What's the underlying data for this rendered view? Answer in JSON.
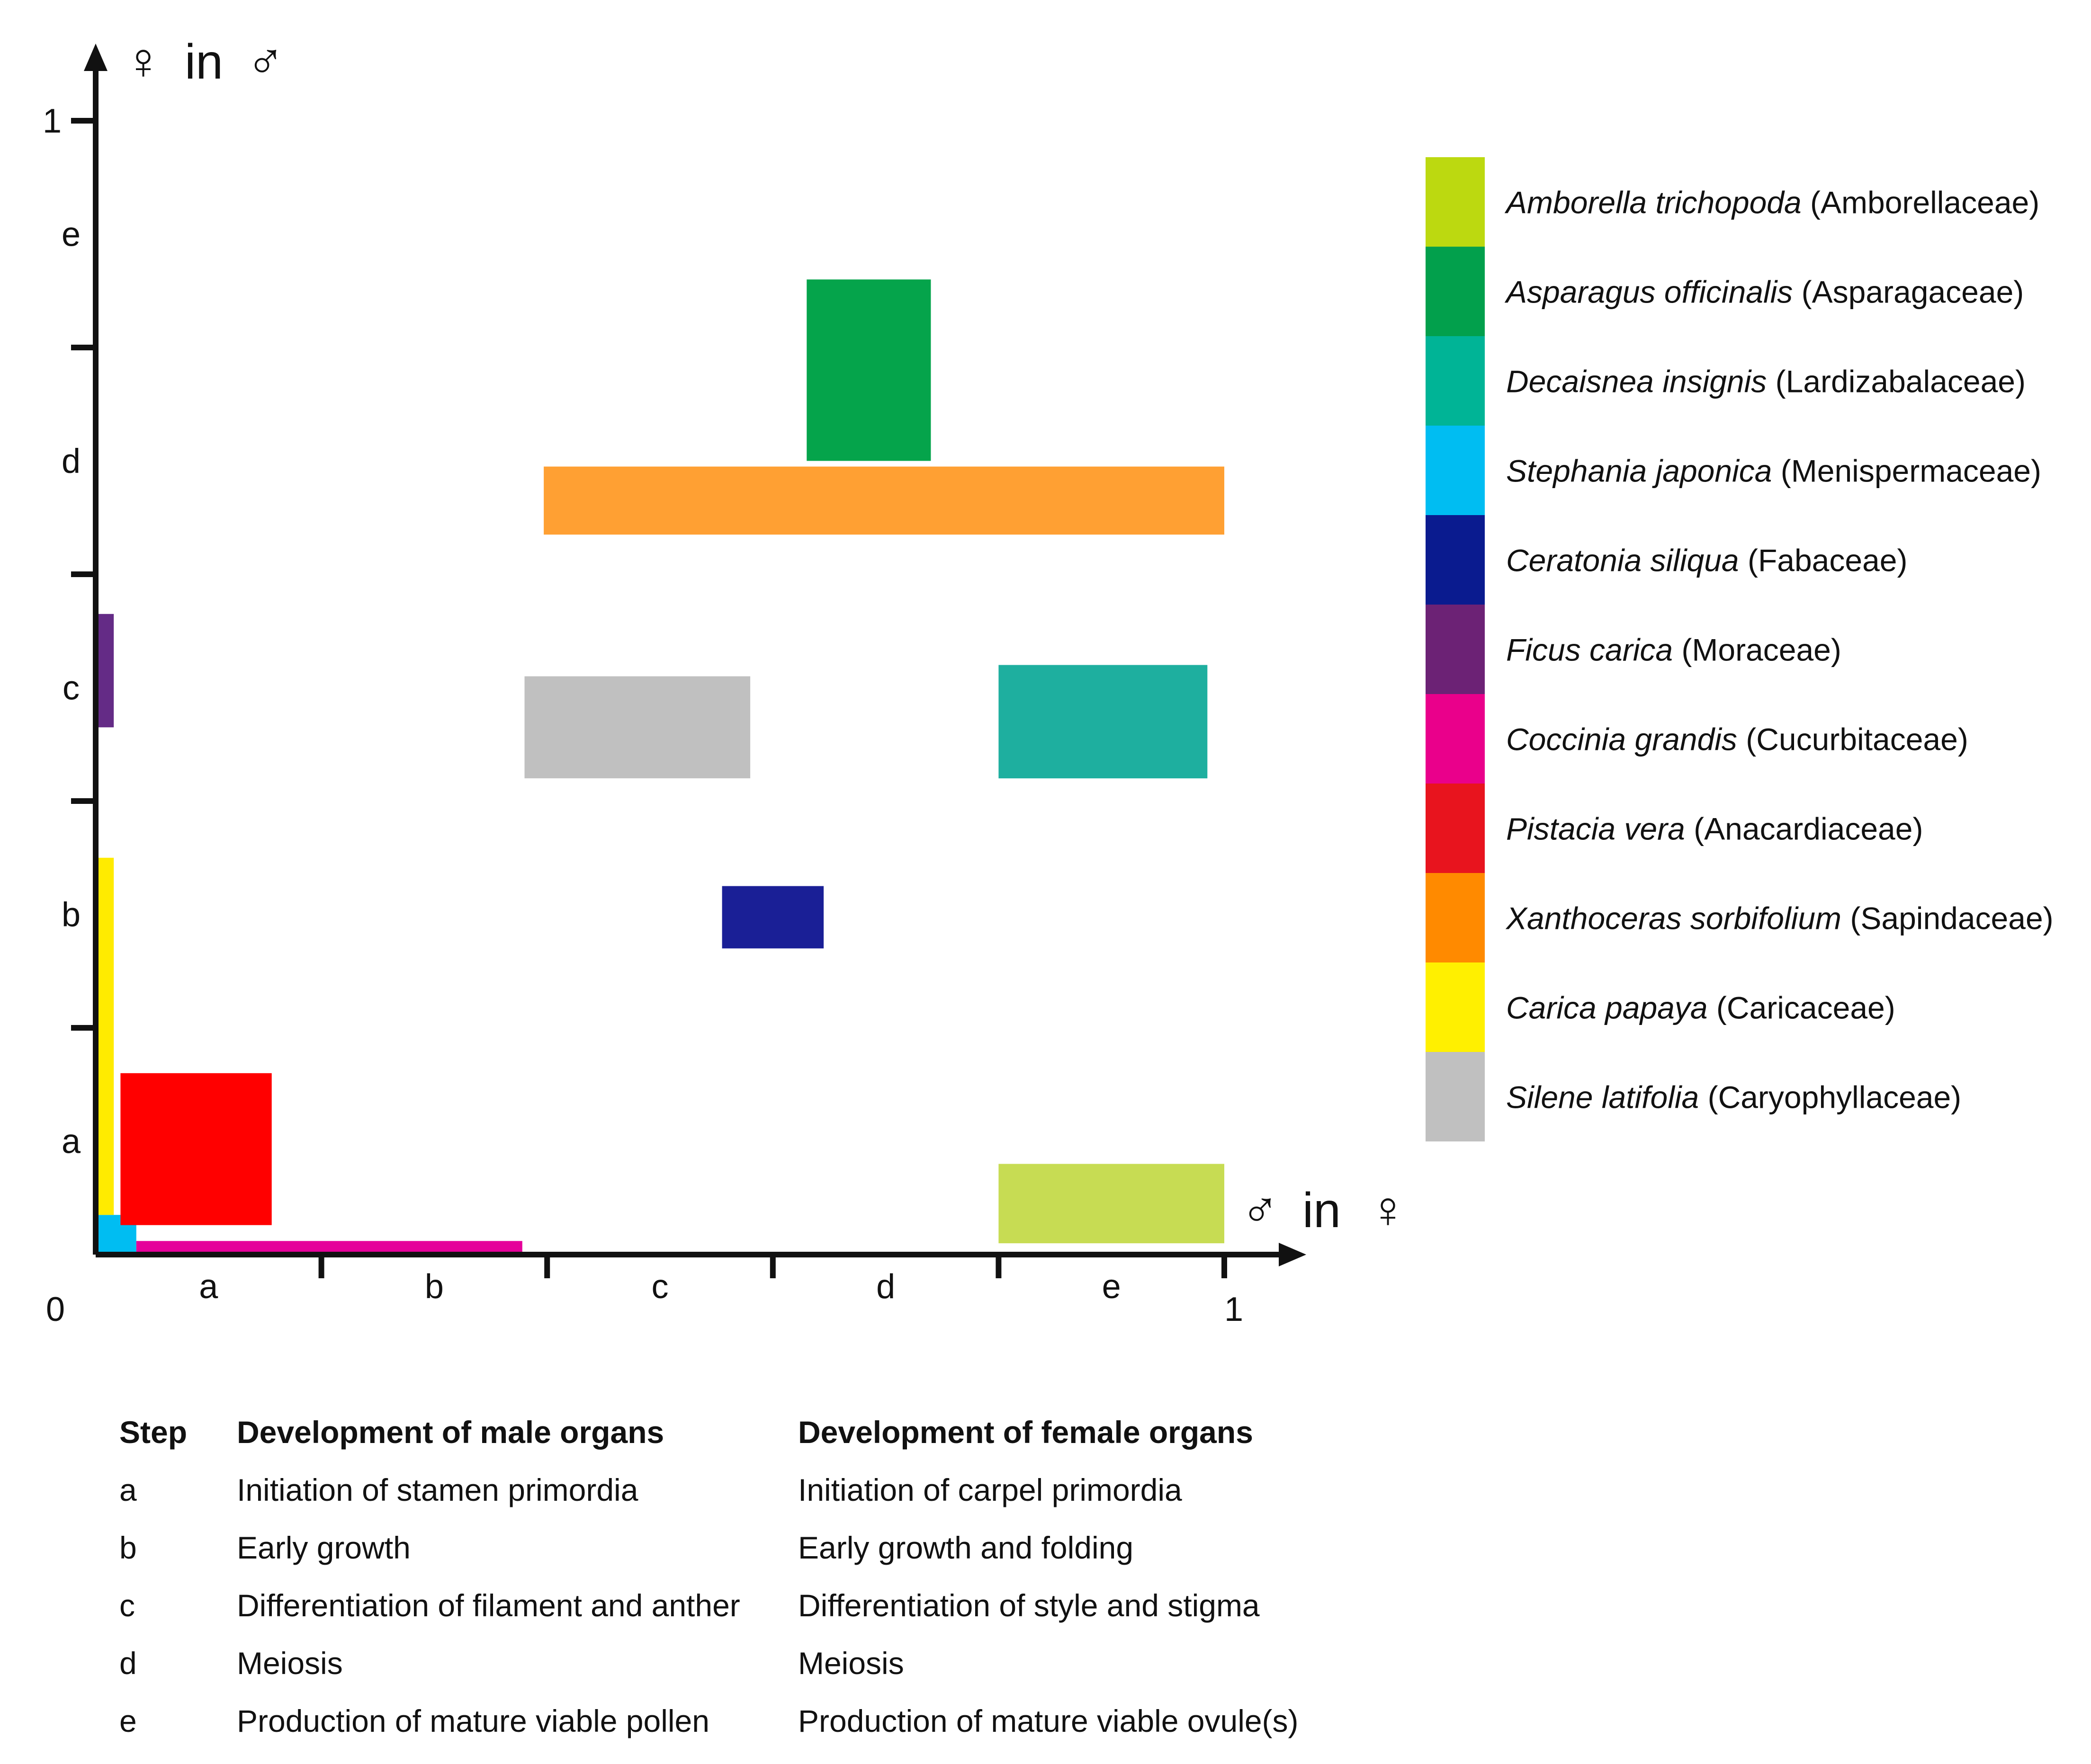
{
  "chart_data": {
    "type": "bar",
    "title": "",
    "xlabel": {
      "prefix_symbol": "♂",
      "middle": "in",
      "suffix_symbol": "♀"
    },
    "ylabel": {
      "prefix_symbol": "♀",
      "middle": "in",
      "suffix_symbol": "♂"
    },
    "xlim": [
      0,
      1
    ],
    "ylim": [
      0,
      1
    ],
    "x_origin_label": "0",
    "x_end_label": "1",
    "y_end_label": "1",
    "x_stage_labels": [
      "a",
      "b",
      "c",
      "d",
      "e"
    ],
    "y_stage_labels": [
      "a",
      "b",
      "c",
      "d",
      "e"
    ],
    "series": [
      {
        "name": "Amborella trichopoda",
        "family": "(Amborellaceae)",
        "color": "#C7DC53",
        "x_range": [
          0.8,
          1.0
        ],
        "y_range": [
          0.01,
          0.08
        ]
      },
      {
        "name": "Asparagus officinalis",
        "family": "(Asparagaceae)",
        "color": "#05A44B",
        "x_range": [
          0.63,
          0.74
        ],
        "y_range": [
          0.7,
          0.86
        ]
      },
      {
        "name": "Decaisnea insignis",
        "family": "(Lardizabalaceae)",
        "color": "#1EAF9F",
        "x_range": [
          0.8,
          0.985
        ],
        "y_range": [
          0.42,
          0.52
        ]
      },
      {
        "name": "Stephania japonica",
        "family": "(Menispermaceae)",
        "color": "#00BDF2",
        "x_range": [
          0.0,
          0.036
        ],
        "y_range": [
          0.0,
          0.035
        ]
      },
      {
        "name": "Ceratonia siliqua",
        "family": "(Fabaceae)",
        "color": "#1A1F96",
        "x_range": [
          0.555,
          0.645
        ],
        "y_range": [
          0.27,
          0.325
        ]
      },
      {
        "name": "Ficus carica",
        "family": "(Moraceae)",
        "color": "#642B86",
        "x_range": [
          0.002,
          0.016
        ],
        "y_range": [
          0.465,
          0.565
        ]
      },
      {
        "name": "Coccinia grandis",
        "family": "(Cucurbitaceae)",
        "color": "#E5009A",
        "x_range": [
          0.036,
          0.378
        ],
        "y_range": [
          0.0,
          0.012
        ]
      },
      {
        "name": "Pistacia vera",
        "family": "(Anacardiaceae)",
        "color": "#FF0000",
        "x_range": [
          0.022,
          0.156
        ],
        "y_range": [
          0.026,
          0.16
        ]
      },
      {
        "name": "Xanthoceras sorbifolium",
        "family": "(Sapindaceae)",
        "color": "#FFA033",
        "x_range": [
          0.397,
          1.0
        ],
        "y_range": [
          0.635,
          0.695
        ]
      },
      {
        "name": "Carica papaya",
        "family": "(Caricaceae)",
        "color": "#FFEB00",
        "x_range": [
          0.002,
          0.016
        ],
        "y_range": [
          0.035,
          0.35
        ]
      },
      {
        "name": "Silene latifolia",
        "family": "(Caryophyllaceae)",
        "color": "#C0C0C0",
        "x_range": [
          0.38,
          0.58
        ],
        "y_range": [
          0.42,
          0.51
        ]
      }
    ],
    "legend_order": [
      {
        "name": "Amborella trichopoda",
        "family": "(Amborellaceae)",
        "color": "#BCD910"
      },
      {
        "name": "Asparagus officinalis",
        "family": "(Asparagaceae)",
        "color": "#02A04C"
      },
      {
        "name": "Decaisnea insignis",
        "family": "(Lardizabalaceae)",
        "color": "#00B496"
      },
      {
        "name": "Stephania japonica",
        "family": "(Menispermaceae)",
        "color": "#00BDF2"
      },
      {
        "name": "Ceratonia siliqua",
        "family": "(Fabaceae)",
        "color": "#0A1B8F"
      },
      {
        "name": "Ficus carica",
        "family": "(Moraceae)",
        "color": "#6C2275"
      },
      {
        "name": "Coccinia grandis",
        "family": "(Cucurbitaceae)",
        "color": "#EA008B"
      },
      {
        "name": "Pistacia vera",
        "family": "(Anacardiaceae)",
        "color": "#E8141E"
      },
      {
        "name": "Xanthoceras sorbifolium",
        "family": "(Sapindaceae)",
        "color": "#FF8A00"
      },
      {
        "name": "Carica papaya",
        "family": "(Caricaceae)",
        "color": "#FFF000"
      },
      {
        "name": "Silene latifolia",
        "family": "(Caryophyllaceae)",
        "color": "#C0C0C0"
      }
    ]
  },
  "table": {
    "headers": [
      "Step",
      "Development of male organs",
      "Development of female organs"
    ],
    "rows": [
      [
        "a",
        "Initiation of stamen primordia",
        "Initiation of carpel primordia"
      ],
      [
        "b",
        "Early growth",
        "Early growth and folding"
      ],
      [
        "c",
        "Differentiation of filament and anther",
        "Differentiation of style and stigma"
      ],
      [
        "d",
        "Meiosis",
        "Meiosis"
      ],
      [
        "e",
        "Production of mature viable pollen",
        "Production of mature viable ovule(s)"
      ]
    ]
  },
  "colors": {
    "axis": "#111111",
    "symbol_gray": "#9C9C9C"
  }
}
